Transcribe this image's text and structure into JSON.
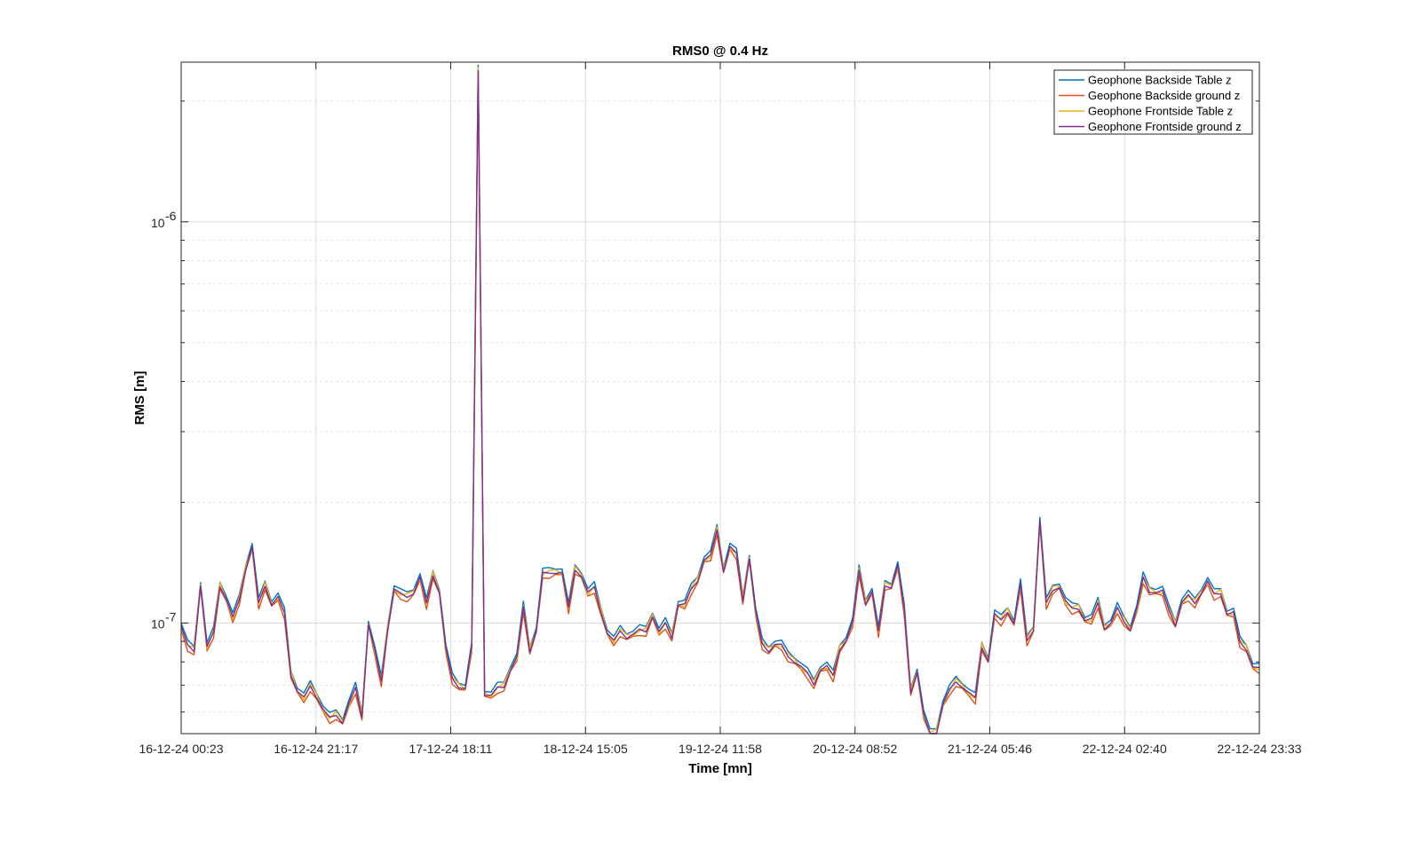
{
  "chart_data": {
    "type": "line",
    "title": "RMS0 @ 0.4 Hz",
    "xlabel": "Time [mn]",
    "ylabel": "RMS [m]",
    "yscale": "log",
    "ylim": [
      5.3e-08,
      2.5e-06
    ],
    "x_tick_labels": [
      "16-12-24 00:23",
      "16-12-24 21:17",
      "17-12-24 18:11",
      "18-12-24 15:05",
      "19-12-24 11:58",
      "20-12-24 08:52",
      "21-12-24 05:46",
      "22-12-24 02:40",
      "22-12-24 23:33"
    ],
    "y_tick_labels": [
      {
        "value": 1e-07,
        "base": "10",
        "exp": "-7"
      },
      {
        "value": 1e-06,
        "base": "10",
        "exp": "-6"
      }
    ],
    "grid": true,
    "legend_position": "top-right",
    "series_base": [
      9.8e-08,
      8.8e-08,
      8.6e-08,
      1.25e-07,
      8.7e-08,
      9.5e-08,
      1.25e-07,
      1.15e-07,
      1.03e-07,
      1.15e-07,
      1.38e-07,
      1.55e-07,
      1.12e-07,
      1.25e-07,
      1.12e-07,
      1.16e-07,
      1.06e-07,
      7.5e-08,
      6.8e-08,
      6.5e-08,
      7e-08,
      6.6e-08,
      6.1e-08,
      5.8e-08,
      5.95e-08,
      5.7e-08,
      6.3e-08,
      6.9e-08,
      5.9e-08,
      1e-07,
      8.5e-08,
      7.2e-08,
      9.8e-08,
      1.22e-07,
      1.18e-07,
      1.17e-07,
      1.2e-07,
      1.3e-07,
      1.12e-07,
      1.33e-07,
      1.2e-07,
      8.6e-08,
      7.3e-08,
      7e-08,
      6.9e-08,
      8.7e-08,
      2.4e-06,
      6.7e-08,
      6.6e-08,
      6.9e-08,
      7e-08,
      7.7e-08,
      8.2e-08,
      1.1e-07,
      8.6e-08,
      9.6e-08,
      1.33e-07,
      1.34e-07,
      1.35e-07,
      1.34e-07,
      1.09e-07,
      1.37e-07,
      1.32e-07,
      1.19e-07,
      1.23e-07,
      1.08e-07,
      9.5e-08,
      9e-08,
      9.6e-08,
      9.3e-08,
      9.4e-08,
      9.6e-08,
      9.6e-08,
      1.05e-07,
      9.5e-08,
      1e-07,
      9.3e-08,
      1.12e-07,
      1.11e-07,
      1.22e-07,
      1.29e-07,
      1.44e-07,
      1.47e-07,
      1.72e-07,
      1.36e-07,
      1.55e-07,
      1.49e-07,
      1.15e-07,
      1.46e-07,
      1.06e-07,
      8.9e-08,
      8.6e-08,
      8.9e-08,
      8.8e-08,
      8.3e-08,
      8.1e-08,
      7.8e-08,
      7.5e-08,
      7.1e-08,
      7.7e-08,
      7.8e-08,
      7.4e-08,
      8.7e-08,
      9.1e-08,
      1e-07,
      1.36e-07,
      1.13e-07,
      1.2e-07,
      9.5e-08,
      1.25e-07,
      1.24e-07,
      1.39e-07,
      1.08e-07,
      6.8e-08,
      7.6e-08,
      5.9e-08,
      5.3e-08,
      5.4e-08,
      6.3e-08,
      6.8e-08,
      7.2e-08,
      7e-08,
      6.7e-08,
      6.5e-08,
      8.8e-08,
      8.1e-08,
      1.05e-07,
      1.02e-07,
      1.08e-07,
      1e-07,
      1.25e-07,
      9.1e-08,
      9.7e-08,
      1.8e-07,
      1.12e-07,
      1.22e-07,
      1.24e-07,
      1.13e-07,
      1.09e-07,
      1.1e-07,
      1.02e-07,
      1.02e-07,
      1.13e-07,
      9.8e-08,
      1e-07,
      1.09e-07,
      1.02e-07,
      9.7e-08,
      1.08e-07,
      1.3e-07,
      1.21e-07,
      1.2e-07,
      1.2e-07,
      1.08e-07,
      1e-07,
      1.13e-07,
      1.17e-07,
      1.13e-07,
      1.2e-07,
      1.27e-07,
      1.18e-07,
      1.2e-07,
      1.06e-07,
      1.06e-07,
      9e-08,
      8.7e-08,
      7.8e-08,
      7.7e-08
    ],
    "series": [
      {
        "name": "Geophone Backside Table z",
        "color": "#0072BD",
        "factor": 1.02
      },
      {
        "name": "Geophone Backside ground z",
        "color": "#D95319",
        "factor": 0.975
      },
      {
        "name": "Geophone Frontside Table z",
        "color": "#EDB120",
        "factor": 1.0
      },
      {
        "name": "Geophone Frontside ground z",
        "color": "#7E2F8E",
        "factor": 0.995
      }
    ]
  }
}
